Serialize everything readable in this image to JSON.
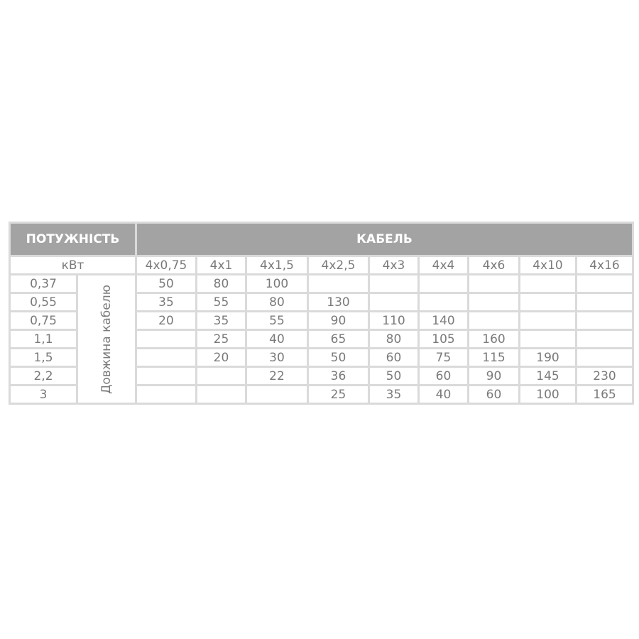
{
  "header": {
    "power": "ПОТУЖНІСТЬ",
    "cable": "КАБЕЛЬ"
  },
  "unit": "кВт",
  "side_label": "Довжина кабелю",
  "columns": [
    "4x0,75",
    "4x1",
    "4x1,5",
    "4x2,5",
    "4x3",
    "4x4",
    "4x6",
    "4x10",
    "4x16"
  ],
  "rows": [
    {
      "power": "0,37",
      "values": [
        "50",
        "80",
        "100",
        "",
        "",
        "",
        "",
        "",
        ""
      ]
    },
    {
      "power": "0,55",
      "values": [
        "35",
        "55",
        "80",
        "130",
        "",
        "",
        "",
        "",
        ""
      ]
    },
    {
      "power": "0,75",
      "values": [
        "20",
        "35",
        "55",
        "90",
        "110",
        "140",
        "",
        "",
        ""
      ]
    },
    {
      "power": "1,1",
      "values": [
        "",
        "25",
        "40",
        "65",
        "80",
        "105",
        "160",
        "",
        ""
      ]
    },
    {
      "power": "1,5",
      "values": [
        "",
        "20",
        "30",
        "50",
        "60",
        "75",
        "115",
        "190",
        ""
      ]
    },
    {
      "power": "2,2",
      "values": [
        "",
        "",
        "22",
        "36",
        "50",
        "60",
        "90",
        "145",
        "230"
      ]
    },
    {
      "power": "3",
      "values": [
        "",
        "",
        "",
        "25",
        "35",
        "40",
        "60",
        "100",
        "165"
      ]
    }
  ]
}
